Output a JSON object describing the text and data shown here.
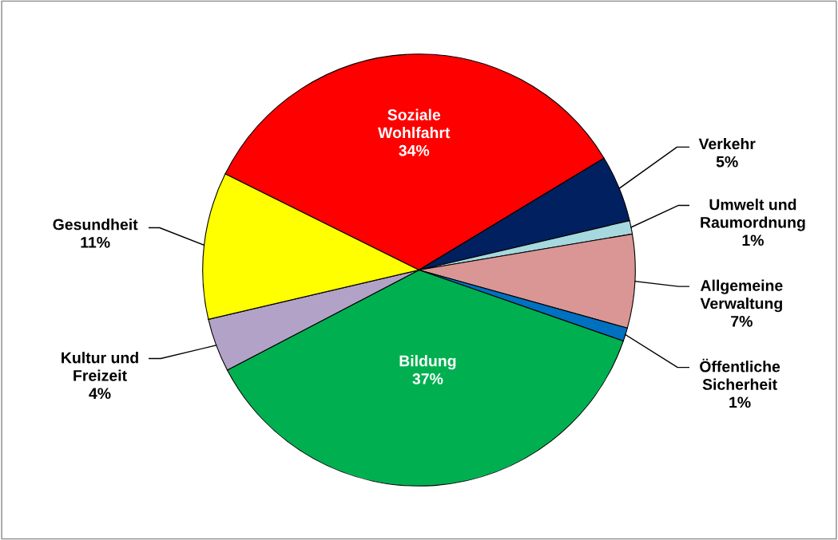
{
  "chart_data": {
    "type": "pie",
    "categories": [
      "Soziale\nWohlfahrt",
      "Verkehr",
      "Umwelt und\nRaumordnung",
      "Allgemeine\nVerwaltung",
      "Öffentliche\nSicherheit",
      "Bildung",
      "Kultur und\nFreizeit",
      "Gesundheit"
    ],
    "values": [
      34,
      5,
      1,
      7,
      1,
      37,
      4,
      11
    ],
    "colors": [
      "#ff0000",
      "#002060",
      "#a6d8e0",
      "#d99694",
      "#0070c0",
      "#00b050",
      "#b3a2c7",
      "#ffff00"
    ],
    "value_labels": [
      "34%",
      "5%",
      "1%",
      "7%",
      "1%",
      "37%",
      "4%",
      "11%"
    ],
    "legend": false
  }
}
